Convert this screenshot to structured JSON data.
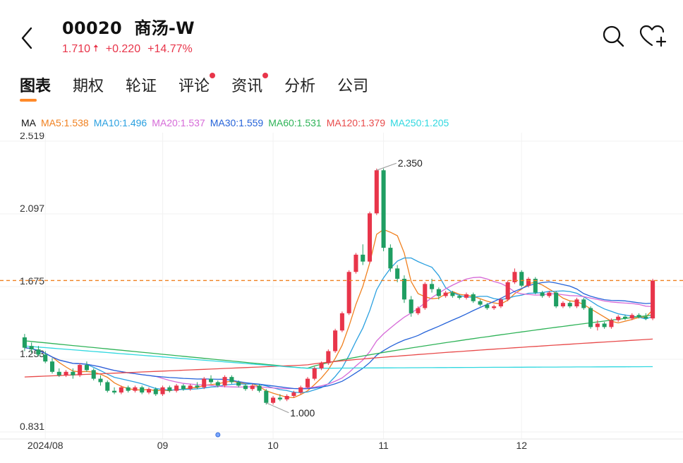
{
  "header": {
    "code": "00020",
    "name": "商汤-W",
    "price": "1.710",
    "change": "+0.220",
    "change_pct": "+14.77%",
    "price_color": "#e8354a",
    "icons": {
      "back": "chevron-left-icon",
      "search": "search-icon",
      "favorite": "heart-plus-icon"
    }
  },
  "tabs": [
    {
      "label": "图表",
      "active": true,
      "badge": false
    },
    {
      "label": "期权",
      "active": false,
      "badge": false
    },
    {
      "label": "轮证",
      "active": false,
      "badge": false
    },
    {
      "label": "评论",
      "active": false,
      "badge": true
    },
    {
      "label": "资讯",
      "active": false,
      "badge": true
    },
    {
      "label": "分析",
      "active": false,
      "badge": false
    },
    {
      "label": "公司",
      "active": false,
      "badge": false
    }
  ],
  "ma_legend": {
    "title": "MA",
    "items": [
      {
        "label": "MA5:1.538",
        "color": "#f0801f"
      },
      {
        "label": "MA10:1.496",
        "color": "#2aa0e0"
      },
      {
        "label": "MA20:1.537",
        "color": "#d66ad8"
      },
      {
        "label": "MA30:1.559",
        "color": "#2563d9"
      },
      {
        "label": "MA60:1.531",
        "color": "#2fb358"
      },
      {
        "label": "MA120:1.379",
        "color": "#e84a4a"
      },
      {
        "label": "MA250:1.205",
        "color": "#30d8e0"
      }
    ]
  },
  "chart_data": {
    "type": "candlestick",
    "y_ticks": [
      "2.519",
      "2.097",
      "1.675",
      "1.253",
      "0.831"
    ],
    "ylim": [
      0.831,
      2.519
    ],
    "x_ticks": [
      "2024/08",
      "09",
      "10",
      "11",
      "12"
    ],
    "last_price_line": 1.71,
    "annotations": [
      {
        "label": "2.350",
        "value": 2.35
      },
      {
        "label": "1.000",
        "value": 1.0
      }
    ],
    "up_color": "#e8354a",
    "down_color": "#1f9e62",
    "candles": [
      [
        1.38,
        1.32,
        1.4,
        1.3
      ],
      [
        1.33,
        1.31,
        1.35,
        1.29
      ],
      [
        1.31,
        1.28,
        1.33,
        1.27
      ],
      [
        1.28,
        1.24,
        1.3,
        1.23
      ],
      [
        1.24,
        1.18,
        1.26,
        1.17
      ],
      [
        1.18,
        1.16,
        1.2,
        1.15
      ],
      [
        1.16,
        1.18,
        1.19,
        1.15
      ],
      [
        1.18,
        1.16,
        1.2,
        1.14
      ],
      [
        1.16,
        1.22,
        1.23,
        1.15
      ],
      [
        1.22,
        1.19,
        1.24,
        1.18
      ],
      [
        1.19,
        1.14,
        1.2,
        1.13
      ],
      [
        1.14,
        1.12,
        1.16,
        1.1
      ],
      [
        1.12,
        1.07,
        1.13,
        1.06
      ],
      [
        1.07,
        1.06,
        1.09,
        1.05
      ],
      [
        1.06,
        1.09,
        1.1,
        1.05
      ],
      [
        1.09,
        1.07,
        1.1,
        1.06
      ],
      [
        1.07,
        1.09,
        1.1,
        1.06
      ],
      [
        1.09,
        1.06,
        1.1,
        1.05
      ],
      [
        1.06,
        1.08,
        1.09,
        1.05
      ],
      [
        1.08,
        1.05,
        1.09,
        1.04
      ],
      [
        1.05,
        1.09,
        1.1,
        1.04
      ],
      [
        1.09,
        1.07,
        1.1,
        1.06
      ],
      [
        1.07,
        1.1,
        1.11,
        1.06
      ],
      [
        1.1,
        1.08,
        1.11,
        1.07
      ],
      [
        1.08,
        1.1,
        1.11,
        1.07
      ],
      [
        1.1,
        1.09,
        1.12,
        1.08
      ],
      [
        1.09,
        1.14,
        1.15,
        1.08
      ],
      [
        1.14,
        1.12,
        1.16,
        1.11
      ],
      [
        1.12,
        1.1,
        1.13,
        1.09
      ],
      [
        1.1,
        1.15,
        1.16,
        1.09
      ],
      [
        1.15,
        1.12,
        1.16,
        1.11
      ],
      [
        1.12,
        1.1,
        1.13,
        1.09
      ],
      [
        1.1,
        1.08,
        1.11,
        1.07
      ],
      [
        1.08,
        1.1,
        1.11,
        1.07
      ],
      [
        1.1,
        1.07,
        1.11,
        1.06
      ],
      [
        1.07,
        1.0,
        1.08,
        0.99
      ],
      [
        1.0,
        1.03,
        1.04,
        0.99
      ],
      [
        1.03,
        1.02,
        1.05,
        1.01
      ],
      [
        1.02,
        1.04,
        1.05,
        1.01
      ],
      [
        1.04,
        1.06,
        1.07,
        1.03
      ],
      [
        1.06,
        1.09,
        1.1,
        1.05
      ],
      [
        1.09,
        1.14,
        1.15,
        1.08
      ],
      [
        1.14,
        1.2,
        1.21,
        1.13
      ],
      [
        1.2,
        1.23,
        1.24,
        1.19
      ],
      [
        1.23,
        1.3,
        1.31,
        1.22
      ],
      [
        1.3,
        1.42,
        1.43,
        1.29
      ],
      [
        1.42,
        1.52,
        1.53,
        1.41
      ],
      [
        1.52,
        1.76,
        1.77,
        1.51
      ],
      [
        1.76,
        1.86,
        1.87,
        1.75
      ],
      [
        1.86,
        1.82,
        1.92,
        1.8
      ],
      [
        1.82,
        2.1,
        2.11,
        1.81
      ],
      [
        2.1,
        2.35,
        2.36,
        2.09
      ],
      [
        2.35,
        1.9,
        2.36,
        1.88
      ],
      [
        1.9,
        1.78,
        1.92,
        1.76
      ],
      [
        1.78,
        1.72,
        1.8,
        1.7
      ],
      [
        1.72,
        1.6,
        1.74,
        1.58
      ],
      [
        1.6,
        1.52,
        1.62,
        1.5
      ],
      [
        1.52,
        1.55,
        1.56,
        1.51
      ],
      [
        1.55,
        1.69,
        1.7,
        1.54
      ],
      [
        1.69,
        1.66,
        1.72,
        1.64
      ],
      [
        1.66,
        1.62,
        1.67,
        1.6
      ],
      [
        1.62,
        1.64,
        1.65,
        1.61
      ],
      [
        1.64,
        1.62,
        1.65,
        1.61
      ],
      [
        1.62,
        1.61,
        1.63,
        1.6
      ],
      [
        1.61,
        1.63,
        1.64,
        1.6
      ],
      [
        1.63,
        1.59,
        1.64,
        1.58
      ],
      [
        1.59,
        1.57,
        1.6,
        1.56
      ],
      [
        1.57,
        1.55,
        1.58,
        1.54
      ],
      [
        1.55,
        1.56,
        1.57,
        1.54
      ],
      [
        1.56,
        1.6,
        1.61,
        1.55
      ],
      [
        1.6,
        1.7,
        1.71,
        1.59
      ],
      [
        1.7,
        1.76,
        1.78,
        1.69
      ],
      [
        1.76,
        1.68,
        1.77,
        1.67
      ],
      [
        1.68,
        1.72,
        1.73,
        1.67
      ],
      [
        1.72,
        1.64,
        1.73,
        1.63
      ],
      [
        1.64,
        1.62,
        1.65,
        1.61
      ],
      [
        1.62,
        1.64,
        1.65,
        1.61
      ],
      [
        1.64,
        1.56,
        1.65,
        1.55
      ],
      [
        1.56,
        1.58,
        1.59,
        1.55
      ],
      [
        1.58,
        1.56,
        1.59,
        1.55
      ],
      [
        1.56,
        1.6,
        1.61,
        1.55
      ],
      [
        1.6,
        1.55,
        1.61,
        1.54
      ],
      [
        1.55,
        1.44,
        1.56,
        1.43
      ],
      [
        1.44,
        1.46,
        1.48,
        1.42
      ],
      [
        1.46,
        1.44,
        1.47,
        1.43
      ],
      [
        1.44,
        1.48,
        1.49,
        1.43
      ],
      [
        1.48,
        1.5,
        1.51,
        1.47
      ],
      [
        1.5,
        1.49,
        1.51,
        1.48
      ],
      [
        1.49,
        1.51,
        1.52,
        1.48
      ],
      [
        1.51,
        1.5,
        1.52,
        1.49
      ],
      [
        1.5,
        1.49,
        1.52,
        1.48
      ],
      [
        1.49,
        1.71,
        1.72,
        1.48
      ]
    ]
  }
}
